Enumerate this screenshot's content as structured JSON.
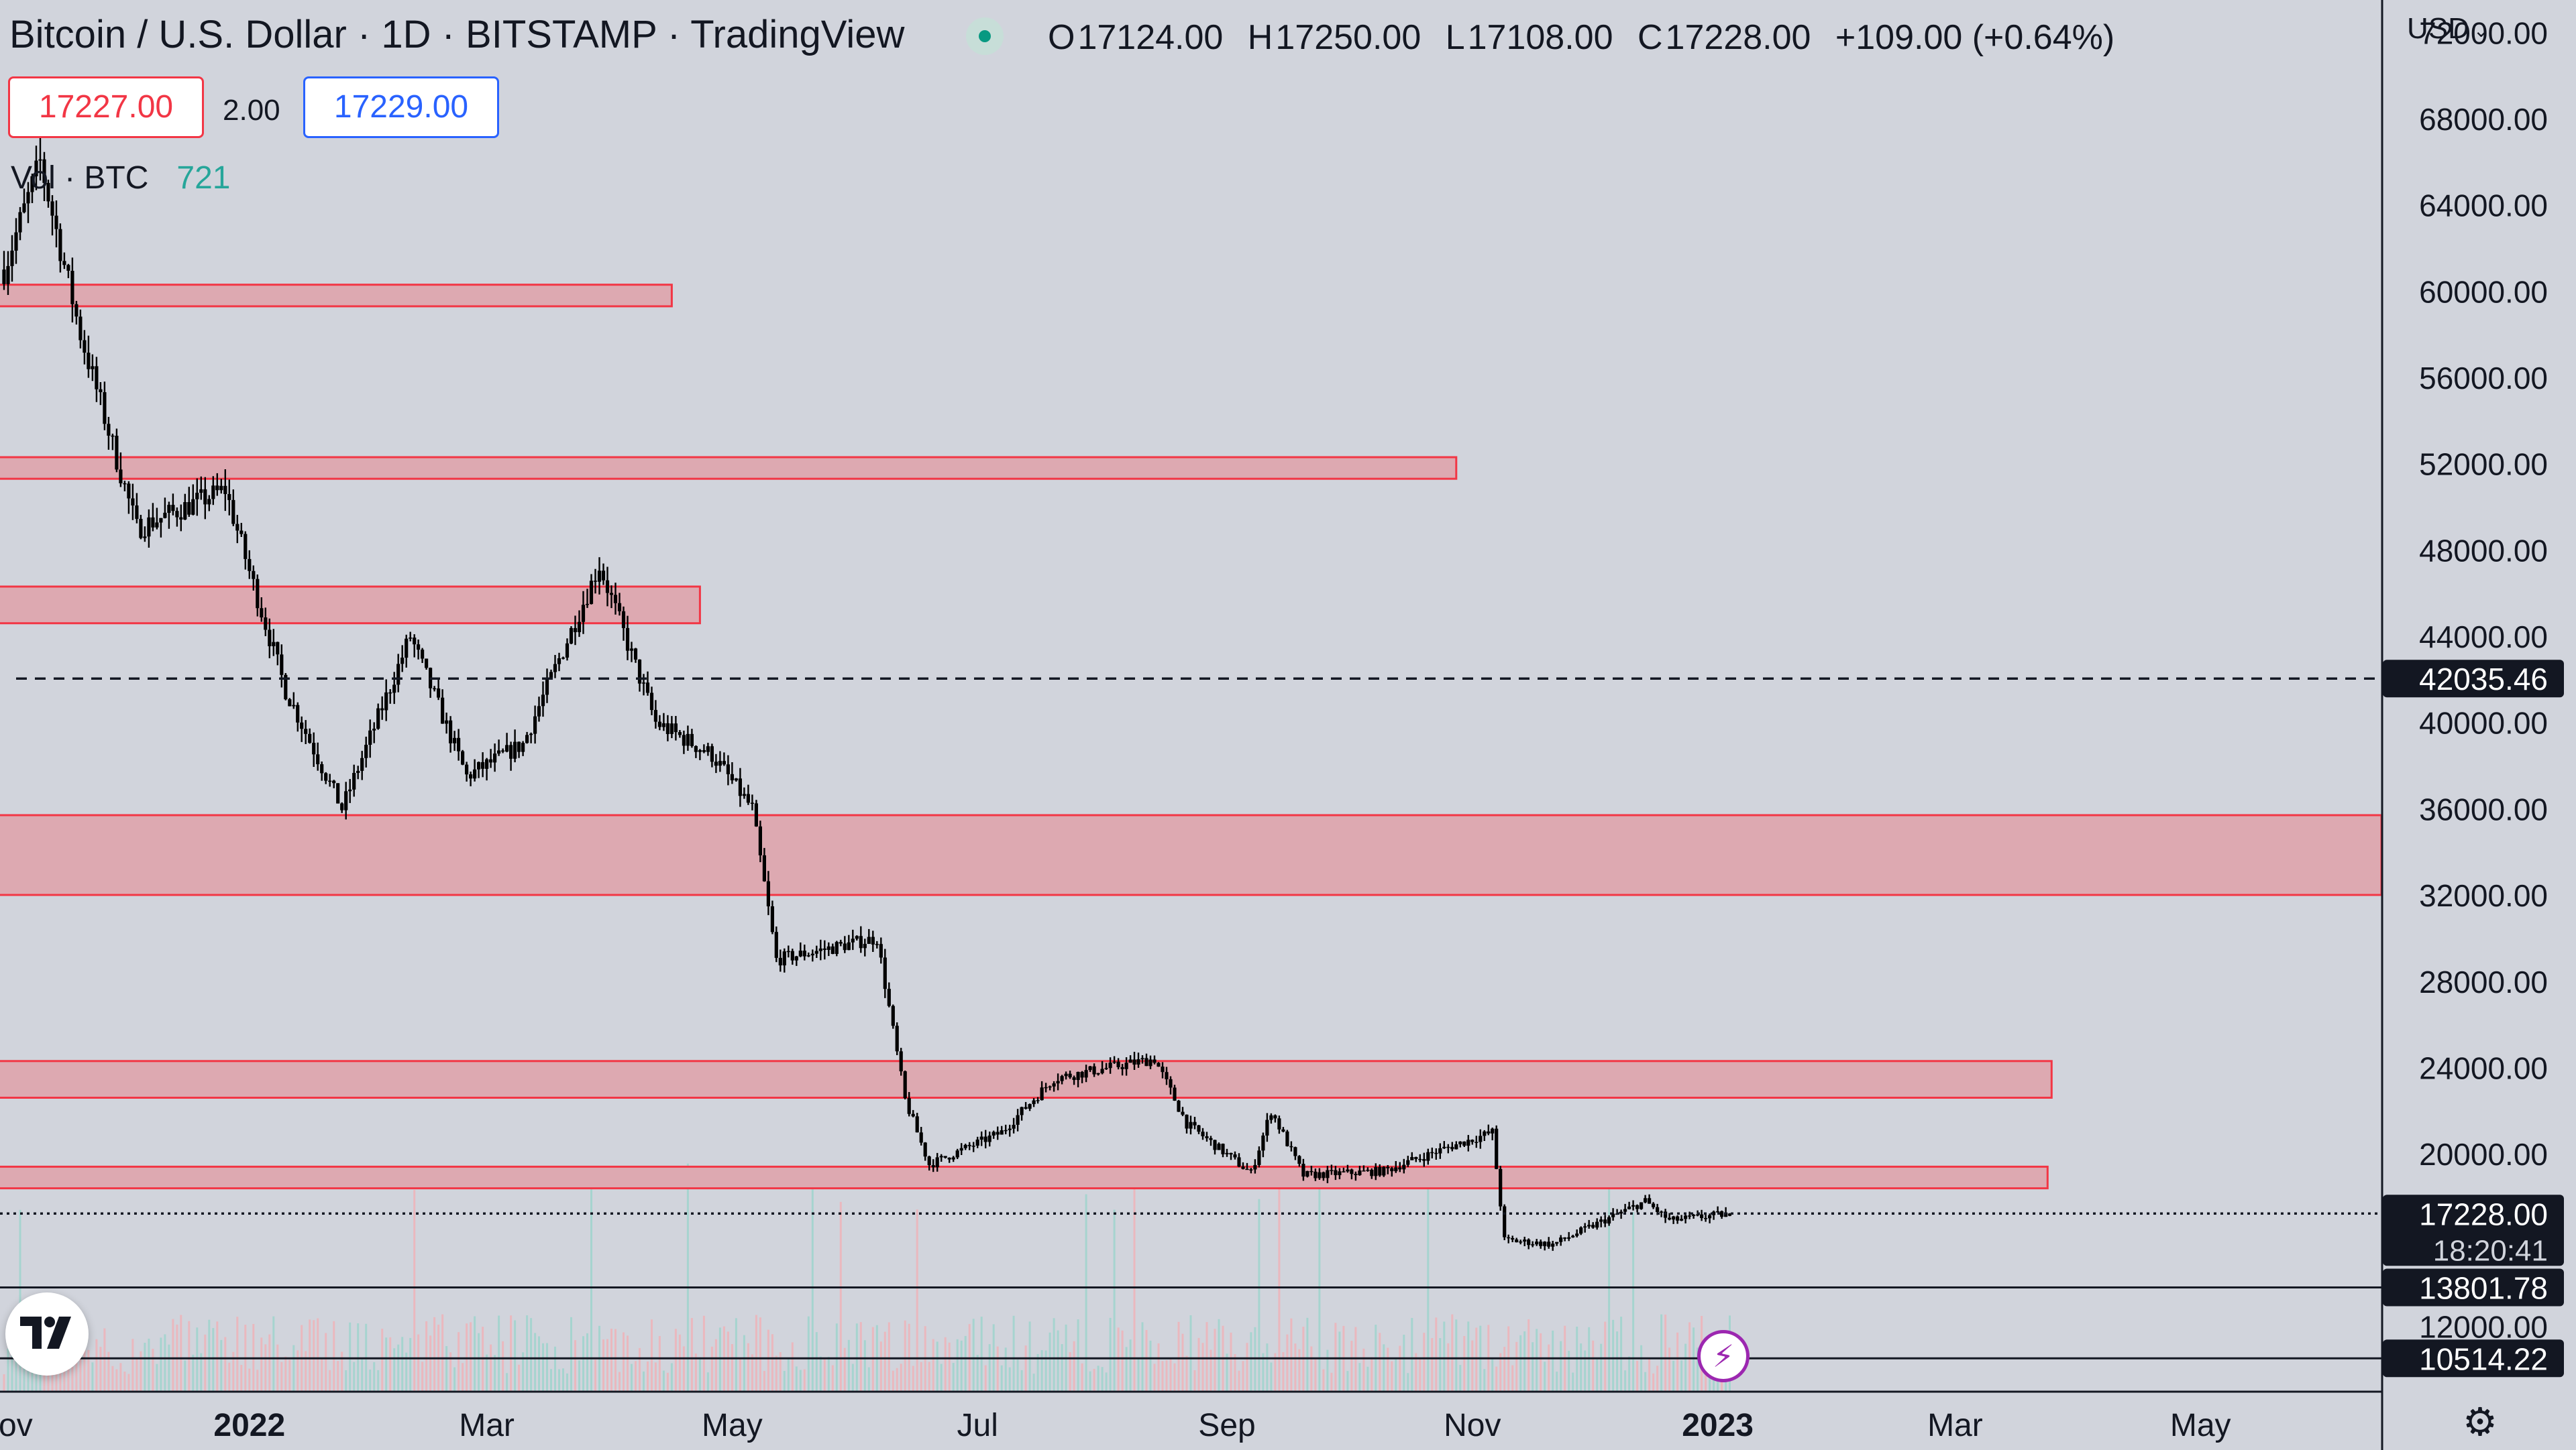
{
  "header": {
    "title": "Bitcoin / U.S. Dollar · 1D · BITSTAMP · TradingView",
    "ohlc": {
      "open_label": "O",
      "open": "17124.00",
      "high_label": "H",
      "high": "17250.00",
      "low_label": "L",
      "low": "17108.00",
      "close_label": "C",
      "close": "17228.00",
      "change": "+109.00 (+0.64%)"
    },
    "sell_price": "17227.00",
    "spread": "2.00",
    "buy_price": "17229.00",
    "volume_label": "Vol · BTC",
    "volume_value": "721"
  },
  "currency": {
    "label": "USD",
    "icon": "chevron-down-icon"
  },
  "icons": {
    "logo": "tradingview-logo-icon",
    "bolt": "lightning-bolt-icon",
    "settings": "gear-icon"
  },
  "colors": {
    "background": "#d1d4dc",
    "zone_fill": "#dda9b1",
    "zone_stroke": "#f23645",
    "candle": "#000000",
    "volume_up": "#9fd3cc",
    "volume_down": "#efb3b8",
    "accent_sell": "#f23645",
    "accent_buy": "#2962ff"
  },
  "chart_data": {
    "type": "candlestick",
    "symbol": "BTC/USD",
    "timeframe": "1D",
    "x_range": [
      "2021-11-01",
      "2023-05-31"
    ],
    "xlim": [
      "2021-10-31",
      "2023-06-15"
    ],
    "ylim": [
      9000,
      73500
    ],
    "grid": false,
    "y_axis_ticks": [
      12000,
      20000,
      24000,
      28000,
      32000,
      36000,
      40000,
      44000,
      48000,
      52000,
      56000,
      60000,
      64000,
      68000,
      72000
    ],
    "y_axis_tick_labels": [
      "12000.00",
      "20000.00",
      "24000.00",
      "28000.00",
      "32000.00",
      "36000.00",
      "40000.00",
      "44000.00",
      "48000.00",
      "52000.00",
      "56000.00",
      "60000.00",
      "64000.00",
      "68000.00",
      "72000.00"
    ],
    "x_axis_ticks": [
      {
        "date": "2021-11-01",
        "label": "Nov",
        "bold": false
      },
      {
        "date": "2022-01-01",
        "label": "2022",
        "bold": true
      },
      {
        "date": "2022-03-01",
        "label": "Mar",
        "bold": false
      },
      {
        "date": "2022-05-01",
        "label": "May",
        "bold": false
      },
      {
        "date": "2022-07-01",
        "label": "Jul",
        "bold": false
      },
      {
        "date": "2022-09-01",
        "label": "Sep",
        "bold": false
      },
      {
        "date": "2022-11-01",
        "label": "Nov",
        "bold": false
      },
      {
        "date": "2023-01-01",
        "label": "2023",
        "bold": true
      },
      {
        "date": "2023-03-01",
        "label": "Mar",
        "bold": false
      },
      {
        "date": "2023-05-01",
        "label": "May",
        "bold": false
      }
    ],
    "price_anchors": [
      {
        "date": "2021-11-01",
        "price": 61000
      },
      {
        "date": "2021-11-10",
        "price": 66000
      },
      {
        "date": "2021-11-20",
        "price": 58000
      },
      {
        "date": "2021-12-04",
        "price": 49000
      },
      {
        "date": "2021-12-26",
        "price": 50800
      },
      {
        "date": "2022-01-01",
        "price": 47000
      },
      {
        "date": "2022-01-10",
        "price": 41500
      },
      {
        "date": "2022-01-24",
        "price": 36000
      },
      {
        "date": "2022-02-10",
        "price": 44000
      },
      {
        "date": "2022-02-24",
        "price": 37500
      },
      {
        "date": "2022-03-10",
        "price": 39000
      },
      {
        "date": "2022-03-29",
        "price": 47300
      },
      {
        "date": "2022-04-12",
        "price": 40000
      },
      {
        "date": "2022-04-26",
        "price": 38500
      },
      {
        "date": "2022-05-06",
        "price": 36000
      },
      {
        "date": "2022-05-12",
        "price": 29000
      },
      {
        "date": "2022-06-06",
        "price": 30000
      },
      {
        "date": "2022-06-13",
        "price": 22500
      },
      {
        "date": "2022-06-19",
        "price": 19500
      },
      {
        "date": "2022-07-07",
        "price": 21000
      },
      {
        "date": "2022-07-20",
        "price": 23500
      },
      {
        "date": "2022-08-14",
        "price": 24400
      },
      {
        "date": "2022-08-22",
        "price": 21400
      },
      {
        "date": "2022-09-07",
        "price": 19100
      },
      {
        "date": "2022-09-12",
        "price": 22000
      },
      {
        "date": "2022-09-20",
        "price": 19000
      },
      {
        "date": "2022-10-10",
        "price": 19200
      },
      {
        "date": "2022-10-26",
        "price": 20300
      },
      {
        "date": "2022-11-06",
        "price": 21000
      },
      {
        "date": "2022-11-09",
        "price": 16000
      },
      {
        "date": "2022-11-21",
        "price": 15800
      },
      {
        "date": "2022-12-14",
        "price": 17800
      },
      {
        "date": "2022-12-20",
        "price": 16900
      },
      {
        "date": "2023-01-04",
        "price": 17228
      }
    ],
    "overall_high": {
      "date": "2021-11-10",
      "price": 69000
    },
    "overall_low": {
      "date": "2022-11-21",
      "price": 15500
    },
    "zones": [
      {
        "low": 59300,
        "high": 60300,
        "end": "2022-04-16"
      },
      {
        "low": 51300,
        "high": 52300,
        "end": "2022-10-28"
      },
      {
        "low": 44600,
        "high": 46300,
        "end": "2022-04-23"
      },
      {
        "low": 32000,
        "high": 35700,
        "end": "2023-06-15"
      },
      {
        "low": 22600,
        "high": 24300,
        "end": "2023-03-25"
      },
      {
        "low": 18400,
        "high": 19400,
        "end": "2023-03-24"
      }
    ],
    "lines": [
      {
        "price": 42035.46,
        "style": "dashed",
        "label": "42035.46"
      },
      {
        "price": 17228.0,
        "style": "dotted",
        "label": "17228.00"
      },
      {
        "price": 13801.78,
        "style": "solid",
        "label": "13801.78"
      },
      {
        "price": 10514.22,
        "style": "solid",
        "label": "10514.22"
      }
    ],
    "countdown": "18:20:41"
  }
}
